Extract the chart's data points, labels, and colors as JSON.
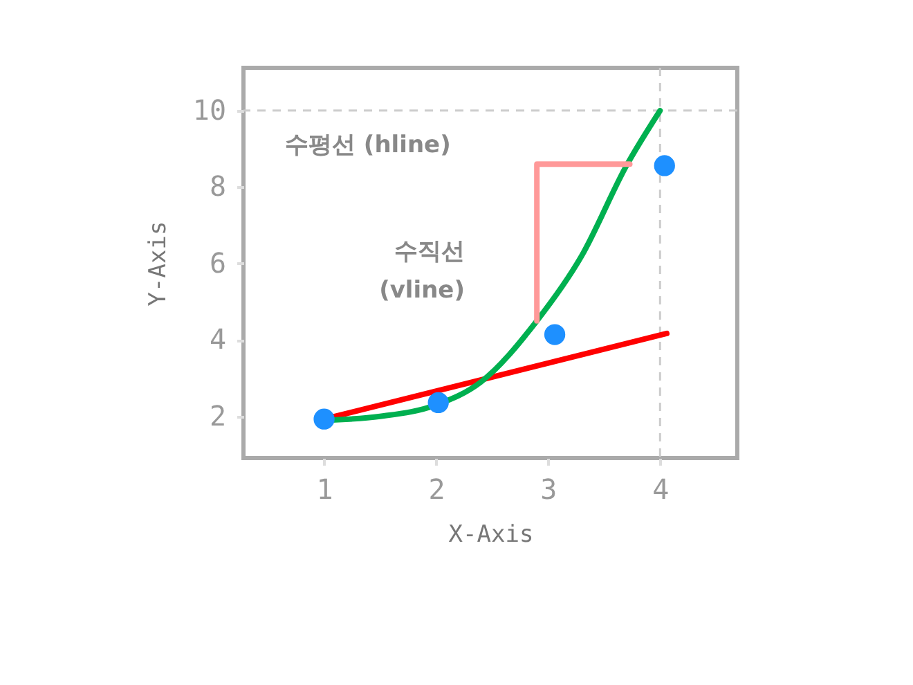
{
  "chart_data": {
    "type": "line",
    "xlabel": "X-Axis",
    "ylabel": "Y-Axis",
    "xlim": [
      0.28,
      4.69
    ],
    "ylim": [
      0.91,
      11.12
    ],
    "xticks": [
      1,
      2,
      3,
      4
    ],
    "yticks": [
      2,
      4,
      6,
      8,
      10
    ],
    "grid": false,
    "line_style": "solid",
    "series": [
      {
        "color": "#ff0000",
        "x": [
          1,
          4.06
        ],
        "values": [
          1.93,
          4.17
        ]
      },
      {
        "color": "#00b050",
        "x": [
          1,
          1.5,
          2,
          2.4,
          2.9,
          3.3,
          3.7,
          4
        ],
        "values": [
          1.9,
          2.0,
          2.3,
          2.9,
          4.5,
          6.2,
          8.56,
          10
        ]
      },
      {
        "color": "#ff9999",
        "x": [
          2.9,
          2.9,
          3.73
        ],
        "values": [
          4.5,
          8.6,
          8.6
        ]
      },
      {
        "type": "scatter",
        "marker": "circle",
        "color": "#1e90ff",
        "x": [
          1,
          2.02,
          3.06,
          4.04
        ],
        "values": [
          1.93,
          2.36,
          4.14,
          8.56
        ]
      }
    ],
    "ref_lines": [
      {
        "axis": "y",
        "value": 10,
        "color": "#cccccc",
        "line_style": "dashed"
      },
      {
        "axis": "x",
        "value": 4,
        "color": "#cccccc",
        "line_style": "dashed"
      }
    ],
    "annotations": [
      "수평선 (hline)",
      "수직선\n(vline)"
    ]
  }
}
